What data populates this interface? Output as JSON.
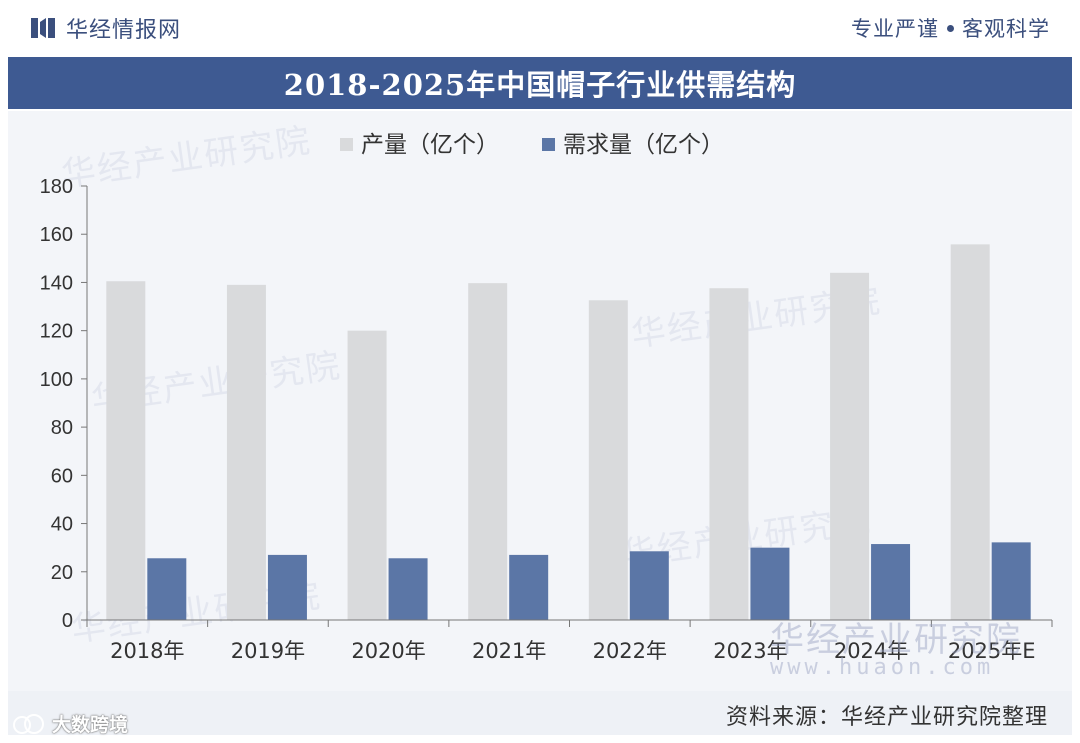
{
  "header": {
    "brand": "华经情报网",
    "slogan_left": "专业严谨",
    "slogan_right": "客观科学"
  },
  "footer": {
    "source": "资料来源：华经产业研究院整理",
    "corner_mark": "大数跨境"
  },
  "watermark": {
    "text": "华经产业研究院",
    "url": "www.huaon.com"
  },
  "colors": {
    "header_band": "#3e5a92",
    "production": "#d9dadc",
    "demand": "#5b76a6",
    "plot_bg": "#f3f5f9"
  },
  "chart_data": {
    "type": "bar",
    "title": "2018-2025年中国帽子行业供需结构",
    "categories": [
      "2018年",
      "2019年",
      "2020年",
      "2021年",
      "2022年",
      "2023年",
      "2024年",
      "2025年E"
    ],
    "series": [
      {
        "name": "产量（亿个）",
        "color": "#d9dadc",
        "values": [
          140.5,
          139,
          120,
          139.7,
          132.6,
          137.6,
          144,
          155.8
        ]
      },
      {
        "name": "需求量（亿个）",
        "color": "#5b76a6",
        "values": [
          25.6,
          27,
          25.6,
          27,
          28.5,
          30,
          31.5,
          32.2
        ]
      }
    ],
    "ylim": [
      0,
      180
    ],
    "yticks": [
      0,
      20,
      40,
      60,
      80,
      100,
      120,
      140,
      160,
      180
    ],
    "legend": "top-left",
    "grid": false
  }
}
